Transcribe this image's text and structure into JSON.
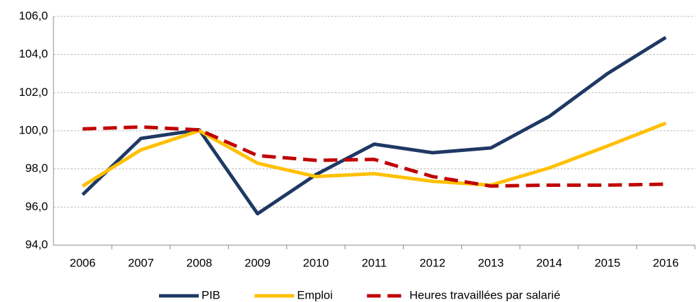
{
  "chart_data": {
    "type": "line",
    "categories": [
      "2006",
      "2007",
      "2008",
      "2009",
      "2010",
      "2011",
      "2012",
      "2013",
      "2014",
      "2015",
      "2016"
    ],
    "series": [
      {
        "name": "PIB",
        "color": "#1f3864",
        "dashed": false,
        "values": [
          96.65,
          99.6,
          100.05,
          95.65,
          97.7,
          99.3,
          98.85,
          99.1,
          100.75,
          103.0,
          104.9
        ]
      },
      {
        "name": "Emploi",
        "color": "#ffc000",
        "dashed": false,
        "values": [
          97.1,
          99.0,
          100.0,
          98.3,
          97.6,
          97.75,
          97.35,
          97.15,
          98.05,
          99.2,
          100.4
        ]
      },
      {
        "name": "Heures travaillées par salarié",
        "color": "#c00000",
        "dashed": true,
        "values": [
          100.1,
          100.2,
          100.05,
          98.7,
          98.45,
          98.5,
          97.6,
          97.1,
          97.15,
          97.15,
          97.2
        ]
      }
    ],
    "ylim": [
      94,
      106
    ],
    "yticks": [
      {
        "value": 94,
        "label": "94,0"
      },
      {
        "value": 96,
        "label": "96,0"
      },
      {
        "value": 98,
        "label": "98,0"
      },
      {
        "value": 100,
        "label": "100,0"
      },
      {
        "value": 102,
        "label": "102,0"
      },
      {
        "value": 104,
        "label": "104,0"
      },
      {
        "value": 106,
        "label": "106,0"
      }
    ],
    "grid": true,
    "legend": "bottom"
  }
}
